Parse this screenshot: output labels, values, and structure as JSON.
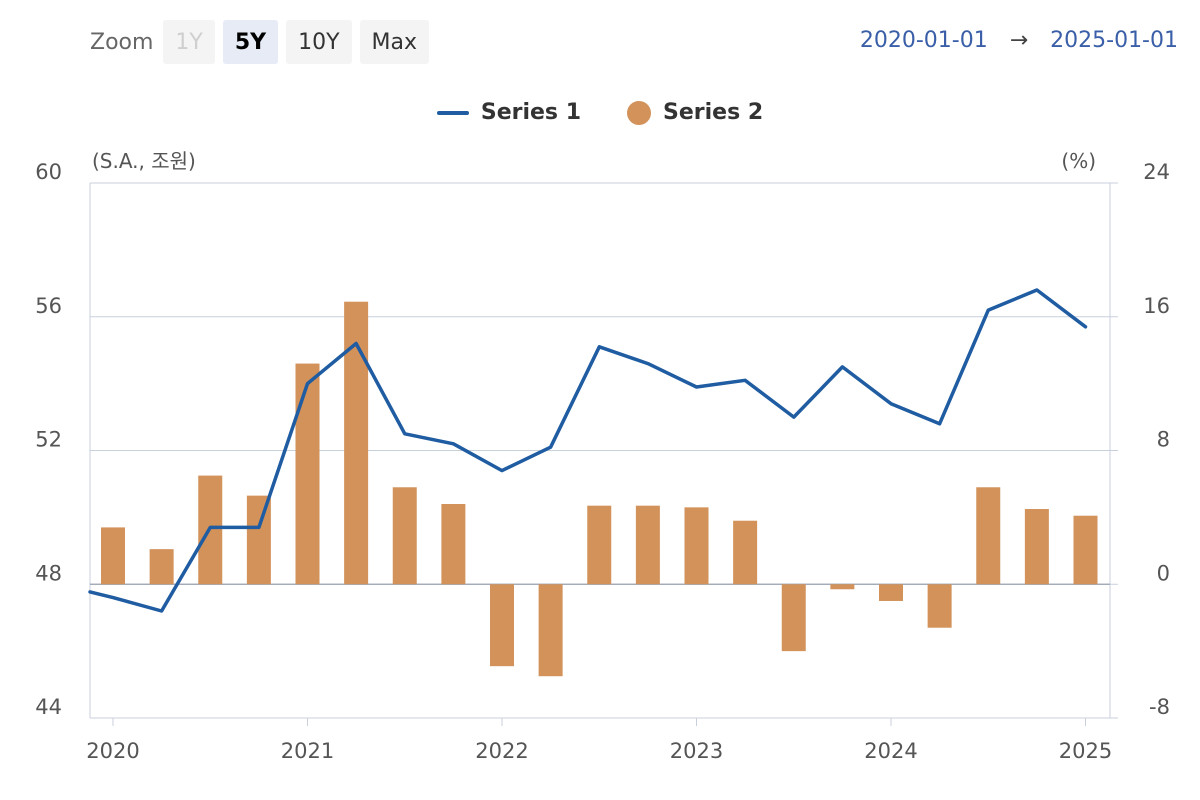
{
  "zoom": {
    "label": "Zoom",
    "buttons": [
      {
        "label": "1Y",
        "state": "disabled"
      },
      {
        "label": "5Y",
        "state": "active"
      },
      {
        "label": "10Y",
        "state": "normal"
      },
      {
        "label": "Max",
        "state": "normal"
      }
    ]
  },
  "range": {
    "from": "2020-01-01",
    "arrow": "→",
    "to": "2025-01-01"
  },
  "legend": {
    "series1": "Series 1",
    "series2": "Series 2"
  },
  "colors": {
    "series1": "#1f5ca1",
    "series2": "#d2925a",
    "grid": "#c8d0dc"
  },
  "chart_data": {
    "type": "bar+line",
    "left_axis_unit": "(S.A., 조원)",
    "right_axis_unit": "(%)",
    "left_axis": {
      "min": 44,
      "max": 60,
      "ticks": [
        60,
        56,
        52,
        48,
        44
      ]
    },
    "right_axis": {
      "min": -8,
      "max": 24,
      "ticks": [
        24,
        16,
        8,
        0,
        -8
      ]
    },
    "x_axis": {
      "start": "2020-01-01",
      "end": "2025-01-01",
      "ticks": [
        "2020",
        "2021",
        "2022",
        "2023",
        "2024",
        "2025"
      ]
    },
    "dates": [
      "2020-01",
      "2020-04",
      "2020-07",
      "2020-10",
      "2021-01",
      "2021-04",
      "2021-07",
      "2021-10",
      "2022-01",
      "2022-04",
      "2022-07",
      "2022-10",
      "2023-01",
      "2023-04",
      "2023-07",
      "2023-10",
      "2024-01",
      "2024-04",
      "2024-07",
      "2024-10",
      "2025-01"
    ],
    "series": [
      {
        "name": "Series 1",
        "axis": "left",
        "kind": "line",
        "values": [
          47.6,
          47.2,
          49.7,
          49.7,
          54.0,
          55.2,
          52.5,
          52.2,
          51.4,
          52.1,
          55.1,
          54.6,
          53.9,
          54.1,
          53.0,
          54.5,
          53.4,
          52.8,
          56.2,
          56.8,
          55.7
        ]
      },
      {
        "name": "Series 2",
        "axis": "right",
        "kind": "bar",
        "values": [
          3.4,
          2.1,
          6.5,
          5.3,
          13.2,
          16.9,
          5.8,
          4.8,
          -4.9,
          -5.5,
          4.7,
          4.7,
          4.6,
          3.8,
          -4.0,
          -0.3,
          -1.0,
          -2.6,
          5.8,
          4.5,
          4.1
        ]
      }
    ]
  }
}
